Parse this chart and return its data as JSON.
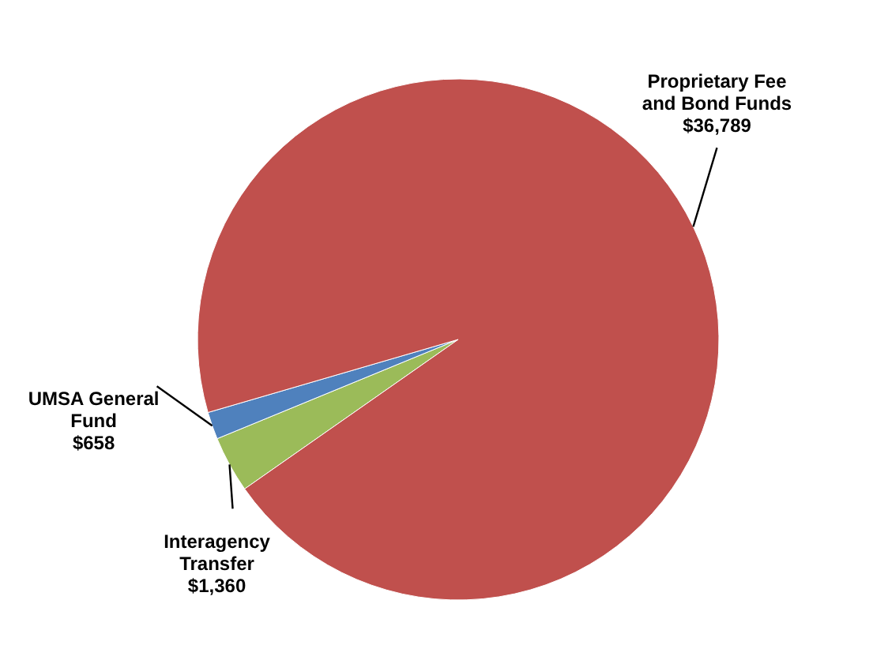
{
  "chart_data": {
    "type": "pie",
    "categories": [
      "Interagency Transfer",
      "UMSA General Fund",
      "Proprietary Fee and Bond Funds"
    ],
    "values": [
      1360,
      658,
      36789
    ],
    "value_labels": [
      "$1,360",
      "$658",
      "$36,789"
    ],
    "colors": [
      "#9bbb59",
      "#4f81bd",
      "#c0504d"
    ],
    "legend": false
  }
}
